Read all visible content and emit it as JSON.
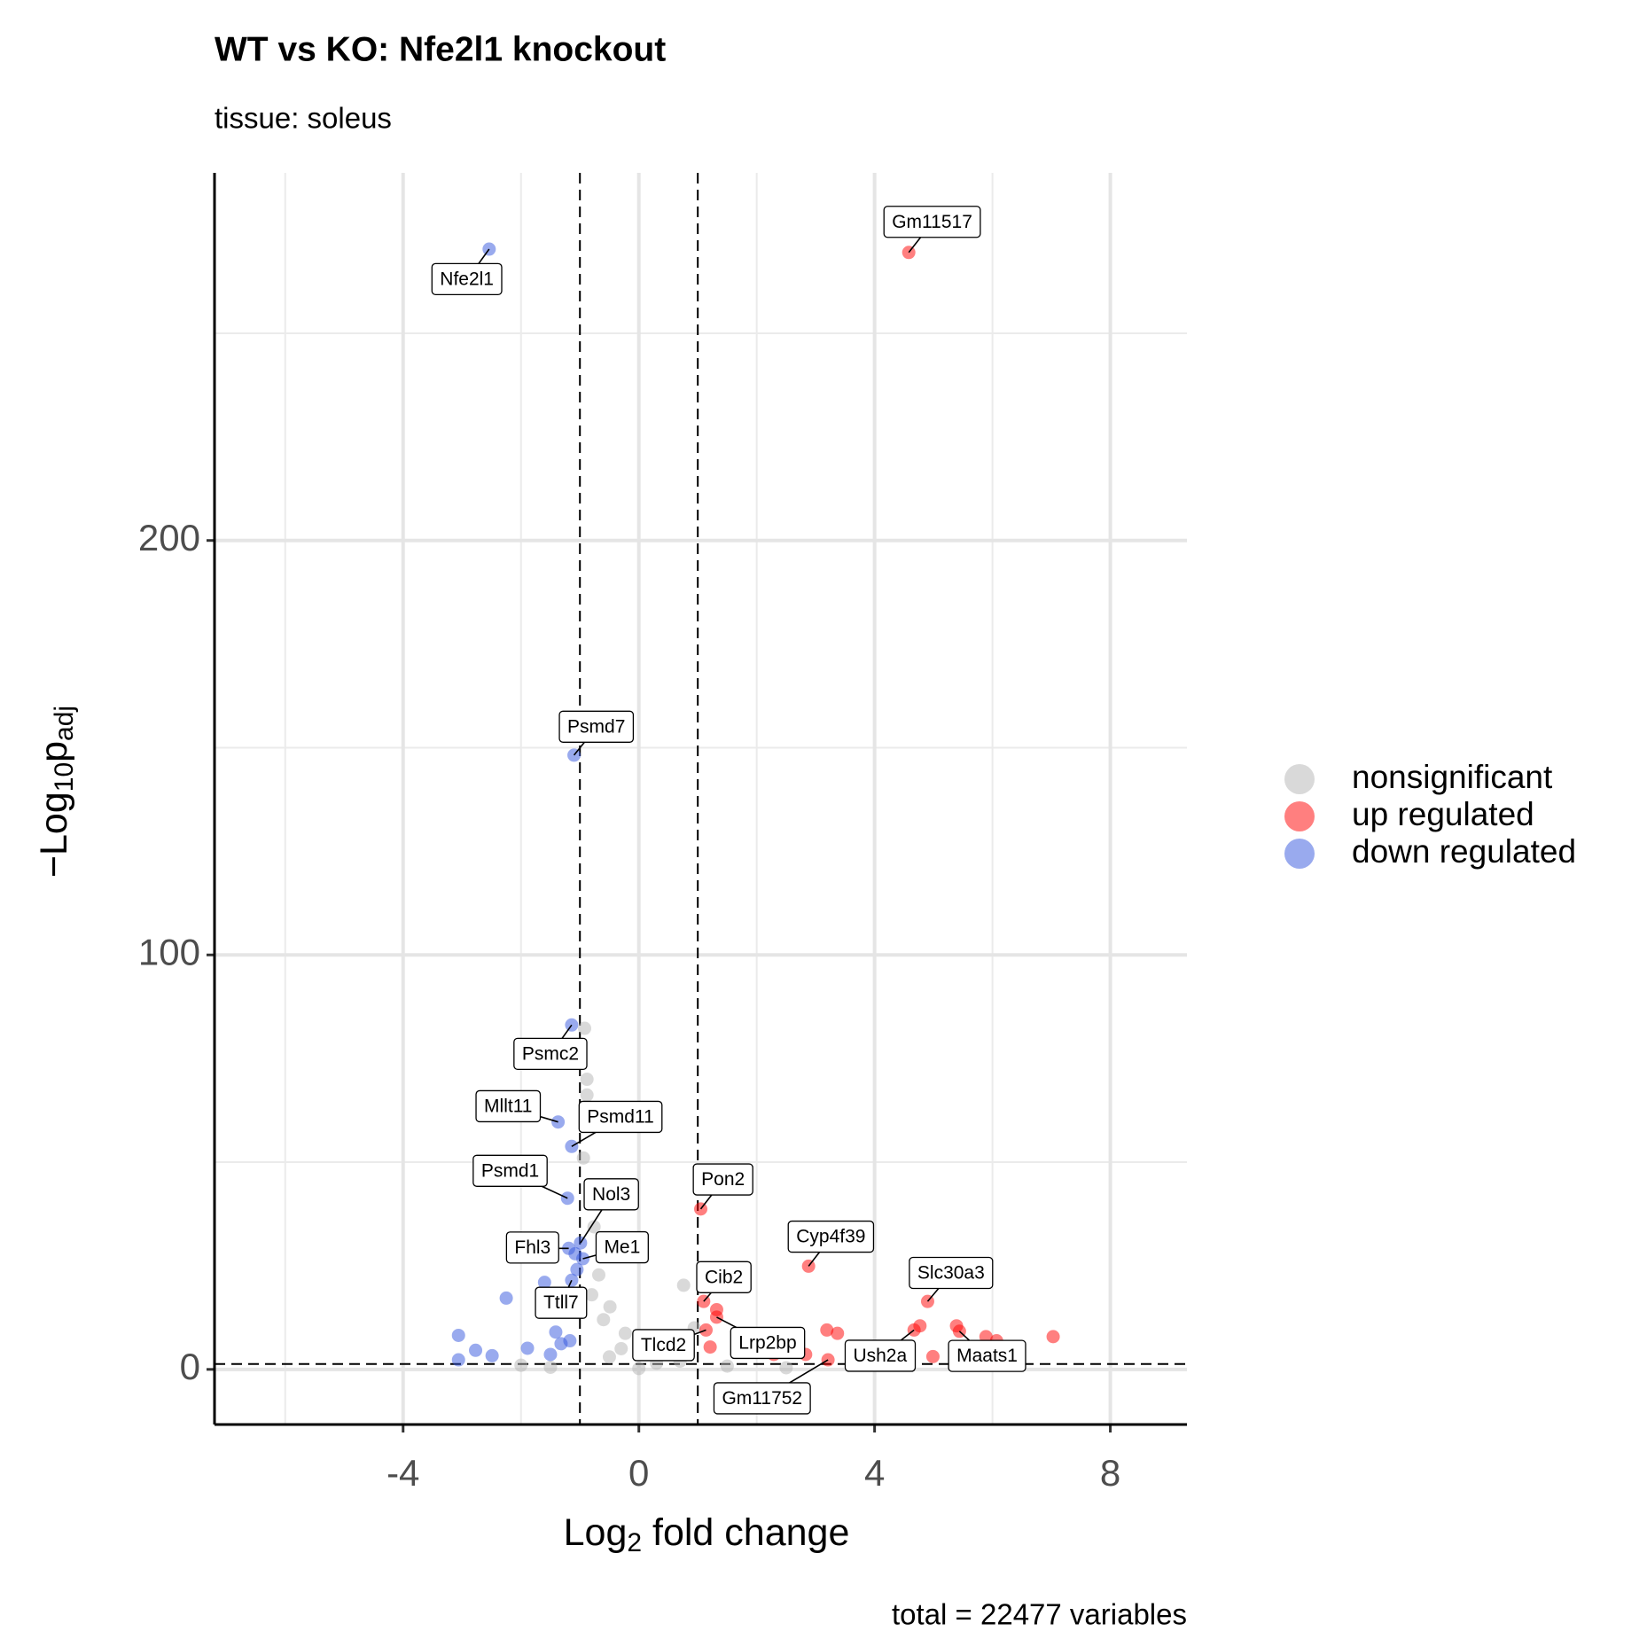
{
  "chart_data": {
    "type": "scatter",
    "title": "WT vs KO: Nfe2l1 knockout",
    "subtitle": "tissue: soleus",
    "x_label": [
      "Log",
      "2",
      " fold change"
    ],
    "y_label": [
      "−Log",
      "10",
      "p",
      "adj"
    ],
    "caption": "total = 22477 variables",
    "xlim": [
      -7.2,
      9.3
    ],
    "ylim": [
      -13.3,
      288.7
    ],
    "xticks": [
      -4,
      0,
      4,
      8
    ],
    "yticks": [
      0,
      100,
      200
    ],
    "x_minor_grid": [
      -6,
      -2,
      2,
      6
    ],
    "y_minor_grid": [
      50,
      150,
      250
    ],
    "grid": true,
    "thresholds": {
      "x": [
        -1,
        1
      ],
      "y": 1.3
    },
    "legend": "right",
    "series": [
      {
        "name": "nonsignificant",
        "color": "#b3b3b3",
        "x": [
          -0.92,
          -0.88,
          -0.88,
          -0.94,
          -0.76,
          -0.68,
          -0.49,
          -0.23,
          0.76,
          0.94,
          -2,
          -1.5,
          -0.5,
          0,
          0.3,
          0.7,
          1.5,
          2.5,
          -0.3,
          -0.6,
          -0.8,
          0.2
        ],
        "values": [
          82.3,
          70.0,
          66.2,
          51.0,
          34.4,
          22.8,
          15.1,
          8.7,
          20.3,
          10.0,
          1,
          0.5,
          3,
          0.2,
          1.5,
          2,
          0.8,
          0.4,
          5,
          12,
          18,
          4
        ],
        "labels": [
          null,
          null,
          null,
          null,
          null,
          null,
          null,
          null,
          null,
          null,
          null,
          null,
          null,
          null,
          null,
          null,
          null,
          null,
          null,
          null,
          null,
          null
        ]
      },
      {
        "name": "up regulated",
        "color": "#ff0000",
        "x": [
          4.58,
          1.05,
          1.1,
          1.14,
          1.32,
          2.88,
          4.9,
          4.67,
          5.44,
          3.21,
          7.03,
          5.89,
          6.07,
          5.39,
          4.77,
          4.99,
          3.19,
          3.37,
          1.32,
          1.75,
          1.21,
          2.29,
          2.83
        ],
        "values": [
          269.5,
          38.7,
          16.4,
          9.5,
          12.6,
          24.9,
          16.4,
          9.5,
          9.2,
          2.3,
          7.9,
          7.9,
          6.9,
          10.5,
          10.5,
          3.1,
          9.5,
          8.7,
          14.4,
          6.2,
          5.4,
          3.6,
          3.6
        ],
        "labels": [
          "Gm11517",
          "Pon2",
          "Cib2",
          "Tlcd2",
          "Lrp2bp",
          "Cyp4f39",
          "Slc30a3",
          "Ush2a",
          "Maats1",
          "Gm11752",
          null,
          null,
          null,
          null,
          null,
          null,
          null,
          null,
          null,
          null,
          null,
          null,
          null
        ]
      },
      {
        "name": "down regulated",
        "color": "#3355dd",
        "x": [
          -2.54,
          -1.1,
          -1.14,
          -1.37,
          -1.14,
          -1.21,
          -0.99,
          -1.19,
          -0.95,
          -1.14,
          -3.06,
          -3.06,
          -2.77,
          -2.25,
          -1.6,
          -1.41,
          -1.89,
          -2.49,
          -1.32,
          -1.05,
          -1.08,
          -1.17,
          -1.5
        ],
        "values": [
          270.3,
          148.2,
          83.1,
          59.7,
          53.8,
          41.3,
          30.5,
          29.2,
          26.7,
          21.5,
          8.2,
          2.3,
          4.6,
          17.2,
          21.0,
          9.0,
          5.1,
          3.3,
          6.2,
          24.1,
          27.9,
          6.9,
          3.6
        ],
        "labels": [
          "Nfe2l1",
          "Psmd7",
          "Psmc2",
          "Mllt11",
          "Psmd11",
          "Psmd1",
          "Nol3",
          "Fhl3",
          "Me1",
          "Ttll7",
          null,
          null,
          null,
          null,
          null,
          null,
          null,
          null,
          null,
          null,
          null,
          null,
          null
        ]
      }
    ]
  }
}
